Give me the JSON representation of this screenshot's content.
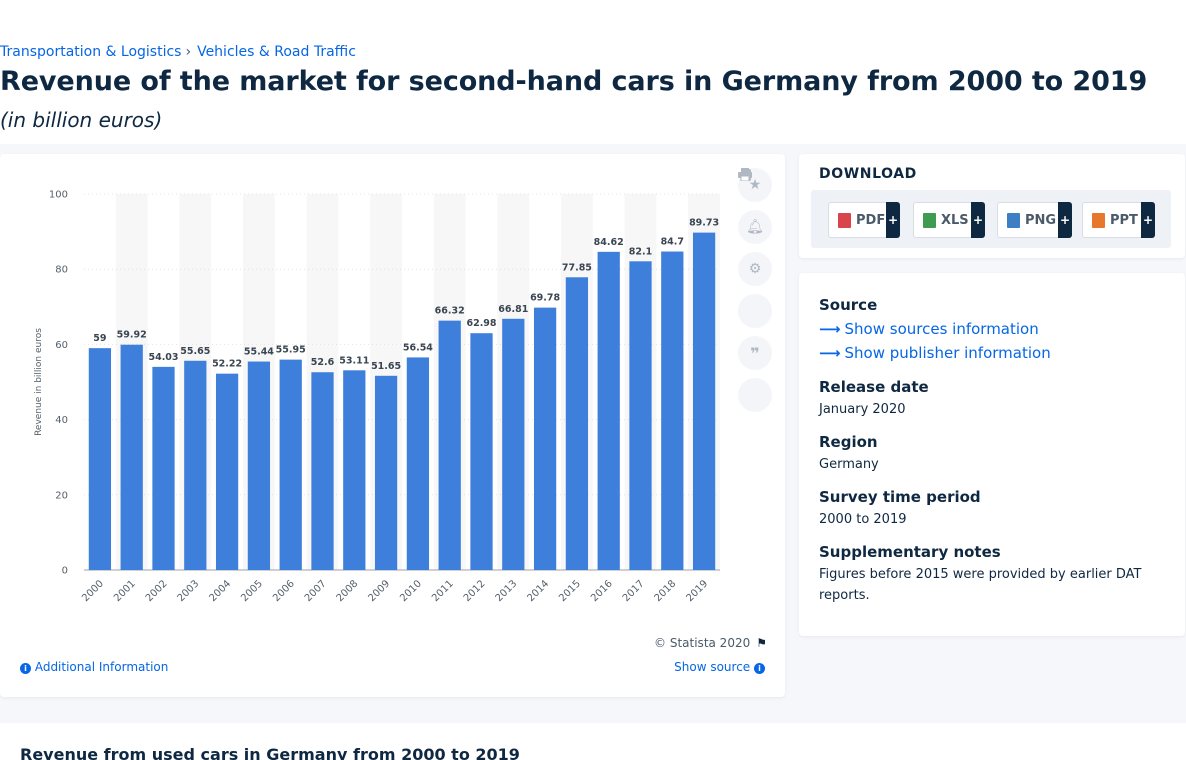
{
  "breadcrumb": {
    "items": [
      "Transportation & Logistics",
      "Vehicles & Road Traffic"
    ],
    "separator": "›"
  },
  "title": "Revenue of the market for second-hand cars in Germany from 2000 to 2019",
  "subtitle": "(in billion euros)",
  "chart_data": {
    "type": "bar",
    "title": "",
    "xlabel": "",
    "ylabel": "Revenue in billion euros",
    "categories": [
      "2000",
      "2001",
      "2002",
      "2003",
      "2004",
      "2005",
      "2006",
      "2007",
      "2008",
      "2009",
      "2010",
      "2011",
      "2012",
      "2013",
      "2014",
      "2015",
      "2016",
      "2017",
      "2018",
      "2019"
    ],
    "values": [
      59,
      59.92,
      54.03,
      55.65,
      52.22,
      55.44,
      55.95,
      52.6,
      53.11,
      51.65,
      56.54,
      66.32,
      62.98,
      66.81,
      69.78,
      77.85,
      84.62,
      82.1,
      84.7,
      89.73
    ],
    "value_labels": [
      "59",
      "59.92",
      "54.03",
      "55.65",
      "52.22",
      "55.44",
      "55.95",
      "52.6",
      "53.11",
      "51.65",
      "56.54",
      "66.32",
      "62.98",
      "66.81",
      "69.78",
      "77.85",
      "84.62",
      "82.1",
      "84.7",
      "89.73"
    ],
    "ylim": [
      0,
      100
    ],
    "yticks": [
      0,
      20,
      40,
      60,
      80,
      100
    ],
    "grid": true,
    "bar_color": "#3f7fdc",
    "stripe_color": "#f7f7f7"
  },
  "chart_card": {
    "side_icons": [
      "star-icon",
      "bell-icon",
      "gear-icon",
      "share-icon",
      "quote-icon",
      "print-icon"
    ],
    "copyright": "© Statista 2020",
    "additional_info": "Additional Information",
    "show_source": "Show source"
  },
  "download": {
    "title": "DOWNLOAD",
    "formats": [
      {
        "label": "PDF",
        "color": "#d9434b"
      },
      {
        "label": "XLS",
        "color": "#3e9b4f"
      },
      {
        "label": "PNG",
        "color": "#3d7fc4"
      },
      {
        "label": "PPT",
        "color": "#e8772e"
      }
    ],
    "plus": "+"
  },
  "meta": {
    "source_label": "Source",
    "show_sources": "Show sources information",
    "show_publisher": "Show publisher information",
    "release_label": "Release date",
    "release_value": "January 2020",
    "region_label": "Region",
    "region_value": "Germany",
    "period_label": "Survey time period",
    "period_value": "2000 to 2019",
    "notes_label": "Supplementary notes",
    "notes_line1": "Figures before 2015 were provided by earlier DAT",
    "notes_line2": "reports."
  },
  "related": {
    "title": "Revenue from used cars in Germany from 2000 to 2019"
  }
}
